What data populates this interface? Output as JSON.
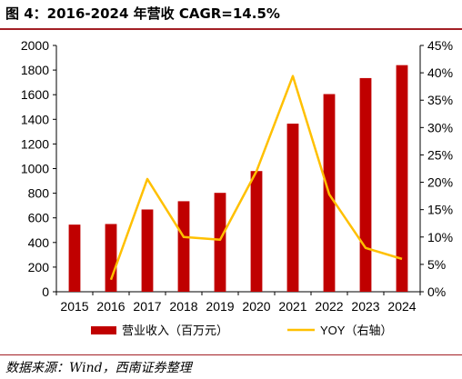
{
  "header": {
    "title": "图 4：2016-2024 年营收 CAGR=14.5%"
  },
  "footer": {
    "source": "数据来源：Wind，西南证券整理"
  },
  "chart_data": {
    "type": "bar+line",
    "title": "图 4：2016-2024 年营收 CAGR=14.5%",
    "categories": [
      "2015",
      "2016",
      "2017",
      "2018",
      "2019",
      "2020",
      "2021",
      "2022",
      "2023",
      "2024"
    ],
    "series": [
      {
        "name": "营业收入（百万元）",
        "type": "bar",
        "axis": "left",
        "color": "#c00000",
        "values": [
          545,
          550,
          668,
          735,
          803,
          980,
          1365,
          1605,
          1735,
          1840
        ]
      },
      {
        "name": "YOY（右轴）",
        "type": "line",
        "axis": "right",
        "color": "#ffc000",
        "values": [
          null,
          0.022,
          0.206,
          0.1,
          0.095,
          0.22,
          0.394,
          0.178,
          0.08,
          0.06
        ]
      }
    ],
    "y_left": {
      "min": 0,
      "max": 2000,
      "ticks": [
        0,
        200,
        400,
        600,
        800,
        1000,
        1200,
        1400,
        1600,
        1800,
        2000
      ]
    },
    "y_right": {
      "min": 0,
      "max": 0.45,
      "ticks": [
        "0%",
        "5%",
        "10%",
        "15%",
        "20%",
        "25%",
        "30%",
        "35%",
        "40%",
        "45%"
      ]
    },
    "grid": false,
    "legend_position": "bottom"
  }
}
